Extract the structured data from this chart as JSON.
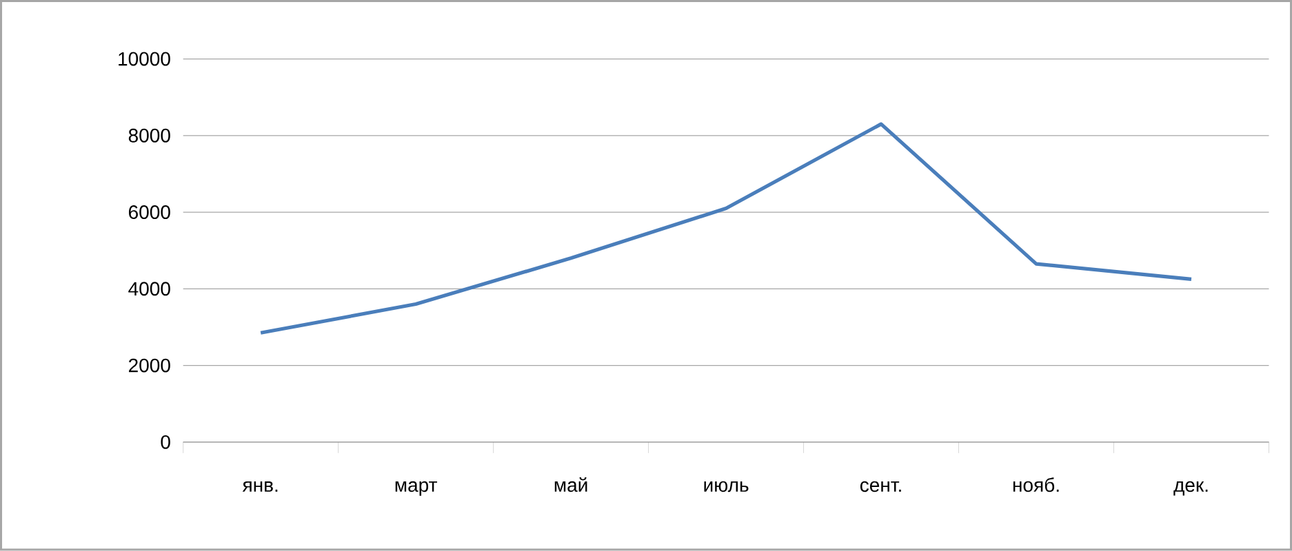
{
  "chart_data": {
    "type": "line",
    "categories": [
      "янв.",
      "март",
      "май",
      "июль",
      "сент.",
      "нояб.",
      "дек."
    ],
    "series": [
      {
        "color": "#4a7ebb",
        "values": [
          2850,
          3600,
          4800,
          6100,
          8300,
          4650,
          4250
        ]
      }
    ],
    "ylim": [
      0,
      10000
    ],
    "yticks": [
      0,
      2000,
      4000,
      6000,
      8000,
      10000
    ],
    "grid": "y",
    "marker": "none",
    "line_style": "solid"
  }
}
